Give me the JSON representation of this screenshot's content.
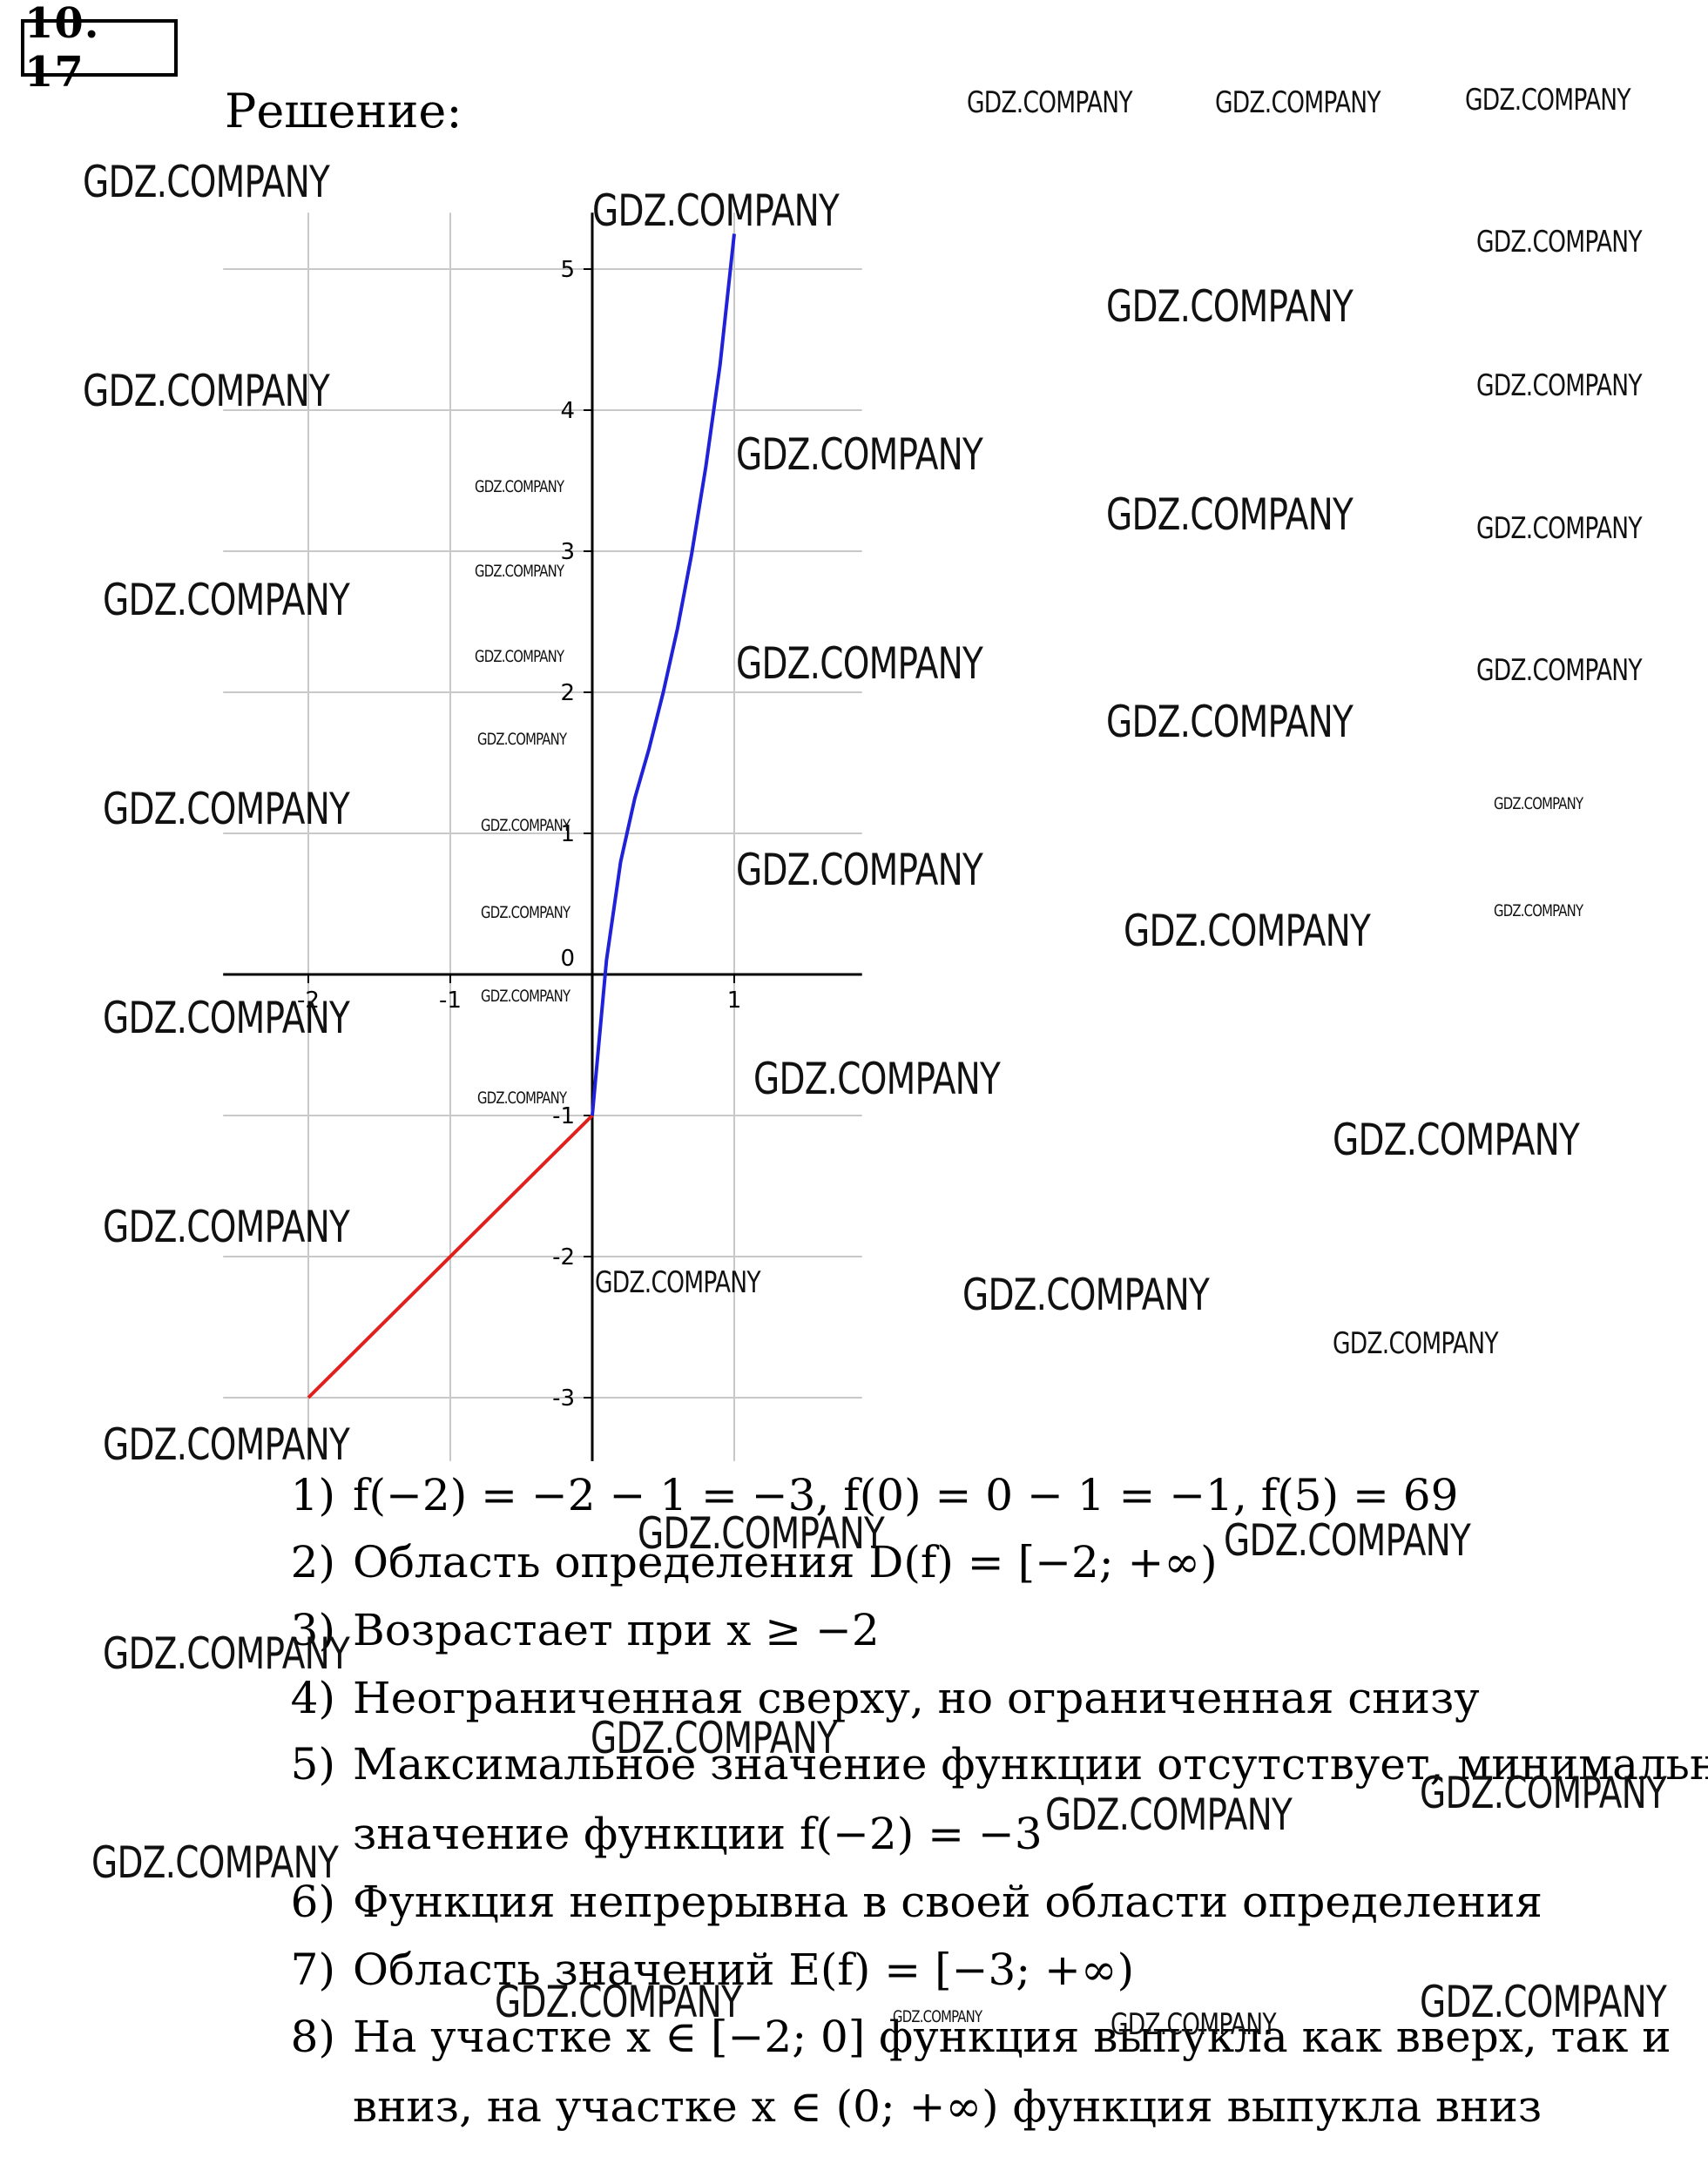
{
  "header": {
    "problem_number": "10. 17",
    "solution_label": "Решение:"
  },
  "chart_data": {
    "type": "line",
    "xlim": [
      -2.6,
      1.9
    ],
    "ylim": [
      -3.45,
      5.4
    ],
    "x_ticks": [
      -2,
      -1,
      0,
      1
    ],
    "x_tick_labels": [
      "-2",
      "-1",
      "0",
      "1"
    ],
    "y_ticks": [
      -3,
      -2,
      -1,
      0,
      1,
      2,
      3,
      4,
      5
    ],
    "y_tick_labels": [
      "-3",
      "-2",
      "-1",
      "0",
      "1",
      "2",
      "3",
      "4",
      "5"
    ],
    "grid": true,
    "series": [
      {
        "color": "#e0201d",
        "x": [
          -2,
          0
        ],
        "y": [
          -3,
          -1
        ]
      },
      {
        "color": "#1f22d8",
        "x": [
          0,
          0.1,
          0.2,
          0.3,
          0.4,
          0.5,
          0.6,
          0.7,
          0.8,
          0.9,
          1.0
        ],
        "y": [
          -1,
          0.1,
          0.8,
          1.25,
          1.6,
          2.0,
          2.45,
          2.98,
          3.6,
          4.32,
          5.25
        ]
      }
    ]
  },
  "facts": [
    {
      "num": "1)",
      "text": "f(−2) = −2 − 1 = −3, f(0) = 0 − 1 = −1, f(5) = 69"
    },
    {
      "num": "2)",
      "text": "Область определения D(f) = [−2;  +∞)"
    },
    {
      "num": "3)",
      "text": "Возрастает при x ≥ −2"
    },
    {
      "num": "4)",
      "text": "Неограниченная сверху, но ограниченная снизу"
    },
    {
      "num": "5)",
      "text": "Максимальное значение функции отсутствует, минимальное"
    },
    {
      "num": "",
      "text": "значение функции f(−2) = −3"
    },
    {
      "num": "6)",
      "text": "Функция непрерывна в своей области определения"
    },
    {
      "num": "7)",
      "text": "Область значений E(f) = [−3; +∞)"
    },
    {
      "num": "8)",
      "text": "На участке x ∈ [−2; 0] функция выпукла как вверх, так и"
    },
    {
      "num": "",
      "text": "вниз, на участке x ∈ (0; +∞) функция выпукла вниз"
    }
  ],
  "watermark": {
    "text": "GDZ.COMPANY"
  }
}
